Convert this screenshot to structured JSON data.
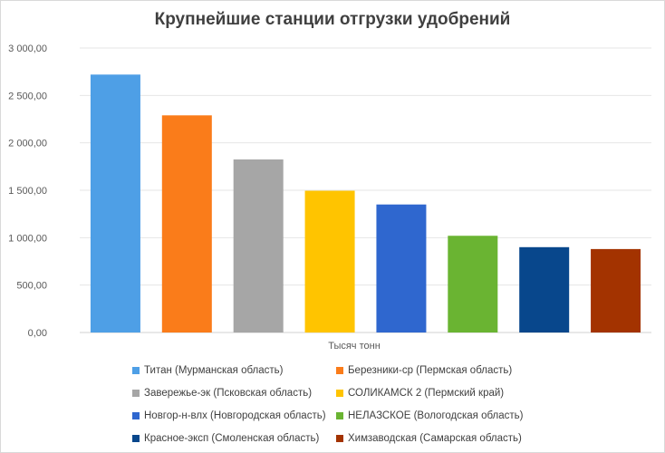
{
  "chart_data": {
    "type": "bar",
    "title": "Крупнейшие станции отгрузки удобрений",
    "xlabel": "Тысяч тонн",
    "ylabel": "",
    "ylim": [
      0,
      3000
    ],
    "y_ticks": [
      "0,00",
      "500,00",
      "1 000,00",
      "1 500,00",
      "2 000,00",
      "2 500,00",
      "3 000,00"
    ],
    "grid": true,
    "legend_position": "bottom",
    "series": [
      {
        "name": "Титан (Мурманская область)",
        "value": 2720,
        "color": "#4e9fe6"
      },
      {
        "name": "Березники-ср  (Пермская область)",
        "value": 2290,
        "color": "#fa7c1a"
      },
      {
        "name": "Завережье-эк  (Псковская область)",
        "value": 1825,
        "color": "#a6a6a6"
      },
      {
        "name": "СОЛИКАМСК  2 (Пермский край)",
        "value": 1495,
        "color": "#ffc400"
      },
      {
        "name": "Новгор-н-влх  (Новгородская область)",
        "value": 1350,
        "color": "#2f67cf"
      },
      {
        "name": "НЕЛАЗСКОЕ  (Вологодская область)",
        "value": 1020,
        "color": "#6ab432"
      },
      {
        "name": "Красное-эксп (Смоленская область)",
        "value": 900,
        "color": "#08478c"
      },
      {
        "name": "Химзаводская (Самарская область)",
        "value": 880,
        "color": "#a33300"
      }
    ]
  }
}
